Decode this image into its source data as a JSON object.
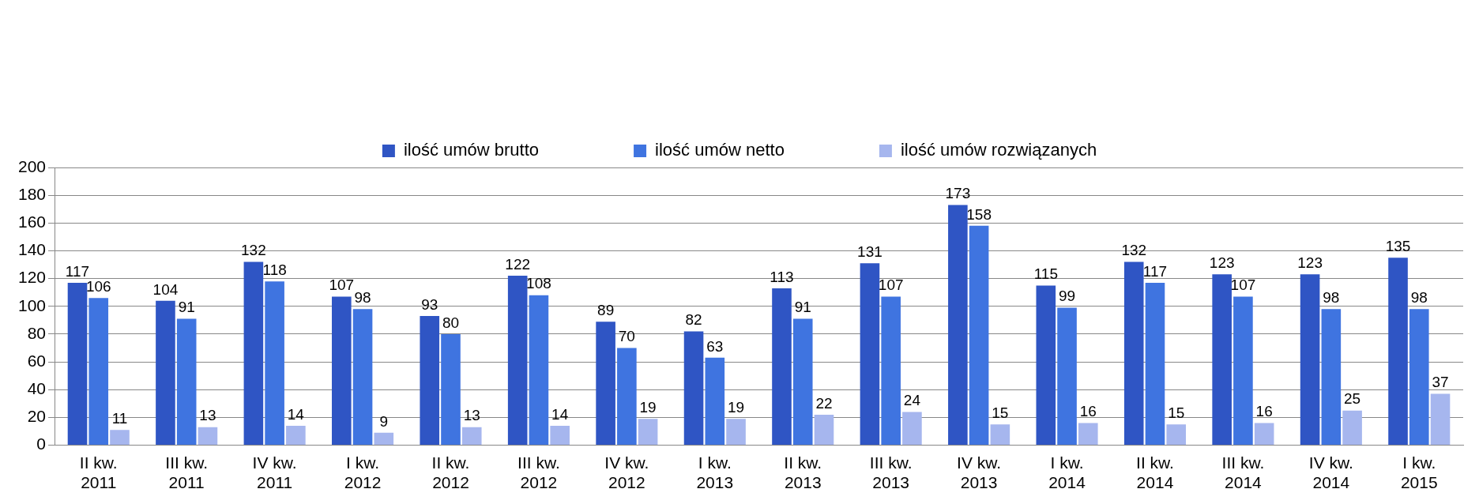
{
  "chart_data": {
    "type": "bar",
    "categories": [
      "II kw.\n2011",
      "III kw.\n2011",
      "IV kw.\n2011",
      "I kw.\n2012",
      "II kw.\n2012",
      "III kw.\n2012",
      "IV kw.\n2012",
      "I kw.\n2013",
      "II kw.\n2013",
      "III kw.\n2013",
      "IV kw.\n2013",
      "I kw.\n2014",
      "II kw.\n2014",
      "III kw.\n2014",
      "IV kw.\n2014",
      "I kw.\n2015"
    ],
    "series": [
      {
        "name": "ilość umów brutto",
        "color": "#2f55c4",
        "values": [
          117,
          104,
          132,
          107,
          93,
          122,
          89,
          82,
          113,
          131,
          173,
          115,
          132,
          123,
          123,
          135
        ]
      },
      {
        "name": "ilość umów netto",
        "color": "#3f74e0",
        "values": [
          106,
          91,
          118,
          98,
          80,
          108,
          70,
          63,
          91,
          107,
          158,
          99,
          117,
          107,
          98,
          98
        ]
      },
      {
        "name": "ilość umów rozwiązanych",
        "color": "#a6b6ee",
        "values": [
          11,
          13,
          14,
          9,
          13,
          14,
          19,
          19,
          22,
          24,
          15,
          16,
          15,
          16,
          25,
          37
        ]
      }
    ],
    "ylim": [
      0,
      200
    ],
    "yticks": [
      0,
      20,
      40,
      60,
      80,
      100,
      120,
      140,
      160,
      180,
      200
    ],
    "grid": "y",
    "legend": "top",
    "data_labels": true
  }
}
